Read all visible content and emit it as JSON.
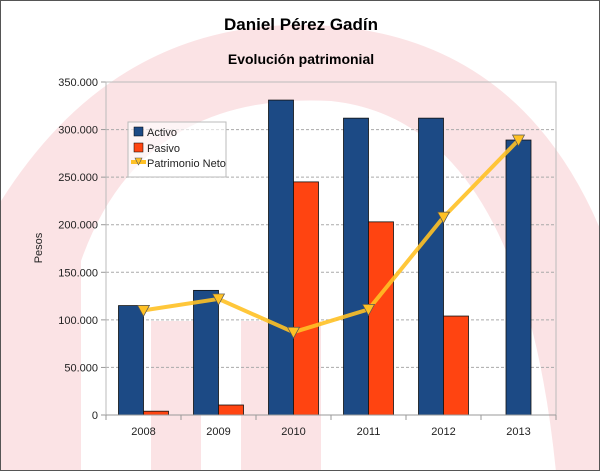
{
  "chart_data": {
    "type": "bar",
    "title": "Daniel Pérez Gadín",
    "subtitle": "Evolución patrimonial",
    "xlabel": "",
    "ylabel": "Pesos",
    "ylim": [
      0,
      350000
    ],
    "yticks": [
      "0",
      "50.000",
      "100.000",
      "150.000",
      "200.000",
      "250.000",
      "300.000",
      "350.000"
    ],
    "ytick_values": [
      0,
      50000,
      100000,
      150000,
      200000,
      250000,
      300000,
      350000
    ],
    "grid": true,
    "legend_position": "top-left",
    "categories": [
      "2008",
      "2009",
      "2010",
      "2011",
      "2012",
      "2013"
    ],
    "series": [
      {
        "name": "Activo",
        "type": "bar",
        "color": "#1c4a85",
        "values": [
          115000,
          131000,
          331000,
          312000,
          312000,
          289000
        ]
      },
      {
        "name": "Pasivo",
        "type": "bar",
        "color": "#ff4411",
        "values": [
          4000,
          10500,
          245000,
          203000,
          104000,
          0
        ]
      },
      {
        "name": "Patrimonio Neto",
        "type": "line",
        "color": "#ffc125",
        "values": [
          110000,
          122000,
          87000,
          111000,
          208000,
          289000
        ]
      }
    ]
  }
}
